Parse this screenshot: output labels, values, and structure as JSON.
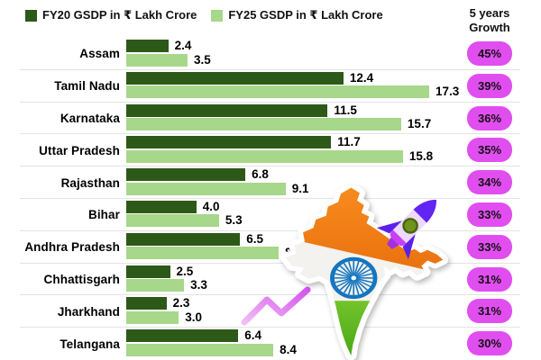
{
  "header": {
    "growth_line1": "5 years",
    "growth_line2": "Growth"
  },
  "legend": {
    "items": [
      {
        "label": "FY20 GSDP in ₹ Lakh Crore",
        "color": "#2d5918"
      },
      {
        "label": "FY25 GSDP in ₹ Lakh Crore",
        "color": "#a7d78a"
      }
    ]
  },
  "chart_data": {
    "type": "bar",
    "orientation": "horizontal",
    "unit": "₹ Lakh Crore",
    "categories": [
      "Assam",
      "Tamil Nadu",
      "Karnataka",
      "Uttar Pradesh",
      "Rajasthan",
      "Bihar",
      "Andhra Pradesh",
      "Chhattisgarh",
      "Jharkhand",
      "Telangana"
    ],
    "series": [
      {
        "name": "FY20 GSDP in ₹ Lakh Crore",
        "color": "#2d5918",
        "values": [
          2.4,
          12.4,
          11.5,
          11.7,
          6.8,
          4.0,
          6.5,
          2.5,
          2.3,
          6.4
        ]
      },
      {
        "name": "FY25 GSDP in ₹ Lakh Crore",
        "color": "#a7d78a",
        "values": [
          3.5,
          17.3,
          15.7,
          15.8,
          9.1,
          5.3,
          8.7,
          3.3,
          3.0,
          8.4
        ]
      }
    ],
    "growth_column": {
      "header": "5 years Growth",
      "values": [
        "45%",
        "39%",
        "36%",
        "35%",
        "34%",
        "33%",
        "33%",
        "31%",
        "31%",
        "30%"
      ]
    },
    "value_labels_shown": true,
    "xlim": [
      0,
      17.3
    ],
    "gridlines": "horizontal row separators only",
    "legend_position": "top-left"
  },
  "colors": {
    "badge_bg": "#e14ef0",
    "separator": "#e3e3e3",
    "text": "#000000",
    "background": "#ffffff"
  },
  "decorations": {
    "india_map": {
      "name": "india-flag-map-sticker",
      "saffron": "#ef7b16",
      "white_band": "#f3f2ef",
      "green": "#54b319",
      "chakra_blue": "#1475c0",
      "border": "#ffffff"
    },
    "rocket": {
      "name": "rocket-illustration",
      "cone": "#6325f2",
      "body": "#ecd9fb",
      "fins": "#5b21e8",
      "window": "#6f941c",
      "stripe": "#cb3ff2",
      "nozzle": "#a22fe0"
    },
    "trend_zigzag": {
      "name": "upward-zigzag-trend-line",
      "color_start": "#f2bdf5",
      "color_end": "#d554ee"
    }
  }
}
